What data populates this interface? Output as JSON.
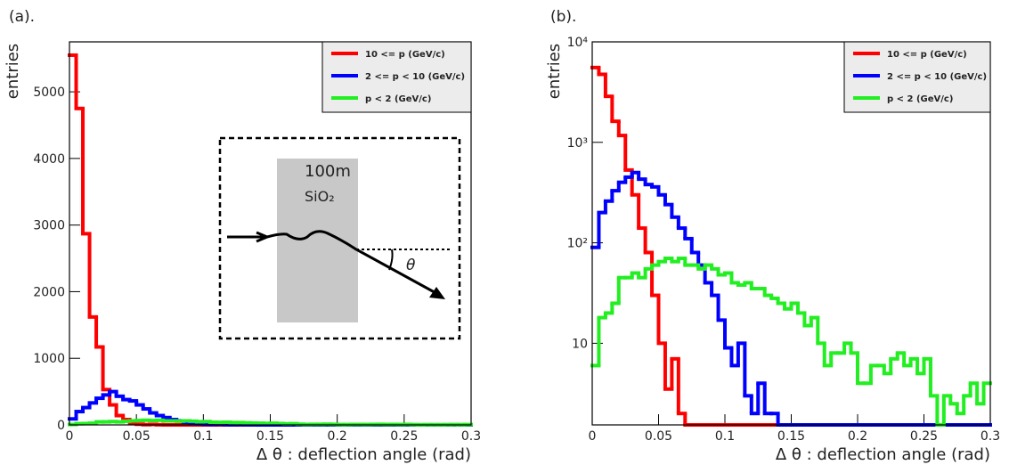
{
  "chart_data": [
    {
      "type": "histogram",
      "panel_label": "(a).",
      "y_label": "entries",
      "x_label": "Δ θ : deflection angle (rad)",
      "log": false,
      "bins": [
        0,
        0.005,
        0.01,
        0.015,
        0.02,
        0.025,
        0.03,
        0.035,
        0.04,
        0.045,
        0.05,
        0.055,
        0.06,
        0.065,
        0.07,
        0.075,
        0.08,
        0.085,
        0.09,
        0.095,
        0.1,
        0.105,
        0.11,
        0.115,
        0.12,
        0.125,
        0.13,
        0.135,
        0.14,
        0.145,
        0.15,
        0.155,
        0.16,
        0.165,
        0.17,
        0.175,
        0.18,
        0.185,
        0.19,
        0.195,
        0.2,
        0.205,
        0.21,
        0.215,
        0.22,
        0.225,
        0.23,
        0.235,
        0.24,
        0.245,
        0.25,
        0.255,
        0.26,
        0.265,
        0.27,
        0.275,
        0.28,
        0.285,
        0.29,
        0.295,
        0.3
      ],
      "series": [
        {
          "name": "10 <= p (GeV/c)",
          "color": "#ff0000",
          "values": [
            5550,
            4750,
            2870,
            1620,
            1170,
            530,
            300,
            140,
            80,
            30,
            10,
            3.5,
            7,
            2,
            0,
            0,
            0,
            0,
            0,
            0,
            0,
            0,
            0,
            0,
            0,
            0,
            0,
            0,
            0,
            0,
            0,
            0,
            0,
            0,
            0,
            0,
            0,
            0,
            0,
            0,
            0,
            0,
            0,
            0,
            0,
            0,
            0,
            0,
            0,
            0,
            0,
            0,
            0,
            0,
            0,
            0,
            0,
            0,
            0,
            0
          ]
        },
        {
          "name": "2 <= p < 10 (GeV/c)",
          "color": "#0000ff",
          "values": [
            90,
            200,
            260,
            330,
            400,
            450,
            500,
            430,
            380,
            360,
            300,
            240,
            180,
            140,
            110,
            80,
            60,
            40,
            30,
            17,
            9,
            6,
            10,
            3,
            2,
            4,
            2,
            2,
            0,
            0,
            0,
            0,
            0,
            0,
            0,
            0,
            0,
            0,
            0,
            0,
            0,
            0,
            0,
            0,
            0,
            0,
            0,
            0,
            0,
            0,
            0,
            0,
            0,
            0,
            0,
            0,
            0,
            0,
            0,
            0
          ]
        },
        {
          "name": "p < 2 (GeV/c)",
          "color": "#22ee22",
          "values": [
            6,
            18,
            20,
            25,
            45,
            45,
            50,
            45,
            55,
            60,
            65,
            70,
            65,
            70,
            60,
            60,
            55,
            60,
            55,
            48,
            50,
            40,
            38,
            40,
            35,
            35,
            30,
            28,
            25,
            22,
            25,
            20,
            15,
            18,
            10,
            6,
            8,
            8,
            10,
            8,
            4,
            4,
            6,
            6,
            5,
            7,
            8,
            6,
            7,
            5,
            7,
            3,
            1.5,
            3,
            2.5,
            2,
            3,
            4,
            2.5,
            4
          ]
        }
      ],
      "xlim": [
        0,
        0.3
      ],
      "xticks": [
        0,
        0.05,
        0.1,
        0.15,
        0.2,
        0.25,
        0.3
      ],
      "ylim": [
        0,
        5750
      ],
      "yticks": [
        0,
        1000,
        2000,
        3000,
        4000,
        5000
      ],
      "annotations": [
        "100m",
        "SiO₂",
        "θ"
      ]
    },
    {
      "type": "histogram",
      "panel_label": "(b).",
      "y_label": "entries",
      "x_label": "Δ θ : deflection angle (rad)",
      "log": true,
      "bins": [
        0,
        0.005,
        0.01,
        0.015,
        0.02,
        0.025,
        0.03,
        0.035,
        0.04,
        0.045,
        0.05,
        0.055,
        0.06,
        0.065,
        0.07,
        0.075,
        0.08,
        0.085,
        0.09,
        0.095,
        0.1,
        0.105,
        0.11,
        0.115,
        0.12,
        0.125,
        0.13,
        0.135,
        0.14,
        0.145,
        0.15,
        0.155,
        0.16,
        0.165,
        0.17,
        0.175,
        0.18,
        0.185,
        0.19,
        0.195,
        0.2,
        0.205,
        0.21,
        0.215,
        0.22,
        0.225,
        0.23,
        0.235,
        0.24,
        0.245,
        0.25,
        0.255,
        0.26,
        0.265,
        0.27,
        0.275,
        0.28,
        0.285,
        0.29,
        0.295,
        0.3
      ],
      "series": [
        {
          "name": "10 <= p (GeV/c)",
          "color": "#ff0000",
          "values": [
            5550,
            4750,
            2870,
            1620,
            1170,
            530,
            300,
            140,
            80,
            30,
            10,
            3.5,
            7,
            2,
            0,
            0,
            0,
            0,
            0,
            0,
            0,
            0,
            0,
            0,
            0,
            0,
            0,
            0,
            0,
            0,
            0,
            0,
            0,
            0,
            0,
            0,
            0,
            0,
            0,
            0,
            0,
            0,
            0,
            0,
            0,
            0,
            0,
            0,
            0,
            0,
            0,
            0,
            0,
            0,
            0,
            0,
            0,
            0,
            0,
            0
          ]
        },
        {
          "name": "2 <= p < 10 (GeV/c)",
          "color": "#0000ff",
          "values": [
            90,
            200,
            260,
            330,
            400,
            450,
            500,
            430,
            380,
            360,
            300,
            240,
            180,
            140,
            110,
            80,
            60,
            40,
            30,
            17,
            9,
            6,
            10,
            3,
            2,
            4,
            2,
            2,
            0,
            0,
            0,
            0,
            0,
            0,
            0,
            0,
            0,
            0,
            0,
            0,
            0,
            0,
            0,
            0,
            0,
            0,
            0,
            0,
            0,
            0,
            0,
            0,
            0,
            0,
            0,
            0,
            0,
            0,
            0,
            0
          ]
        },
        {
          "name": "p < 2 (GeV/c)",
          "color": "#22ee22",
          "values": [
            6,
            18,
            20,
            25,
            45,
            45,
            50,
            45,
            55,
            60,
            65,
            70,
            65,
            70,
            60,
            60,
            55,
            60,
            55,
            48,
            50,
            40,
            38,
            40,
            35,
            35,
            30,
            28,
            25,
            22,
            25,
            20,
            15,
            18,
            10,
            6,
            8,
            8,
            10,
            8,
            4,
            4,
            6,
            6,
            5,
            7,
            8,
            6,
            7,
            5,
            7,
            3,
            1.5,
            3,
            2.5,
            2,
            3,
            4,
            2.5,
            4
          ]
        }
      ],
      "xlim": [
        0,
        0.3
      ],
      "xticks": [
        0,
        0.05,
        0.1,
        0.15,
        0.2,
        0.25,
        0.3
      ],
      "ylim": [
        1.54,
        10000
      ],
      "yticks": [
        10,
        {
          "value": 100,
          "label": "10²"
        },
        {
          "value": 1000,
          "label": "10³"
        },
        {
          "value": 10000,
          "label": "10⁴"
        }
      ]
    }
  ]
}
